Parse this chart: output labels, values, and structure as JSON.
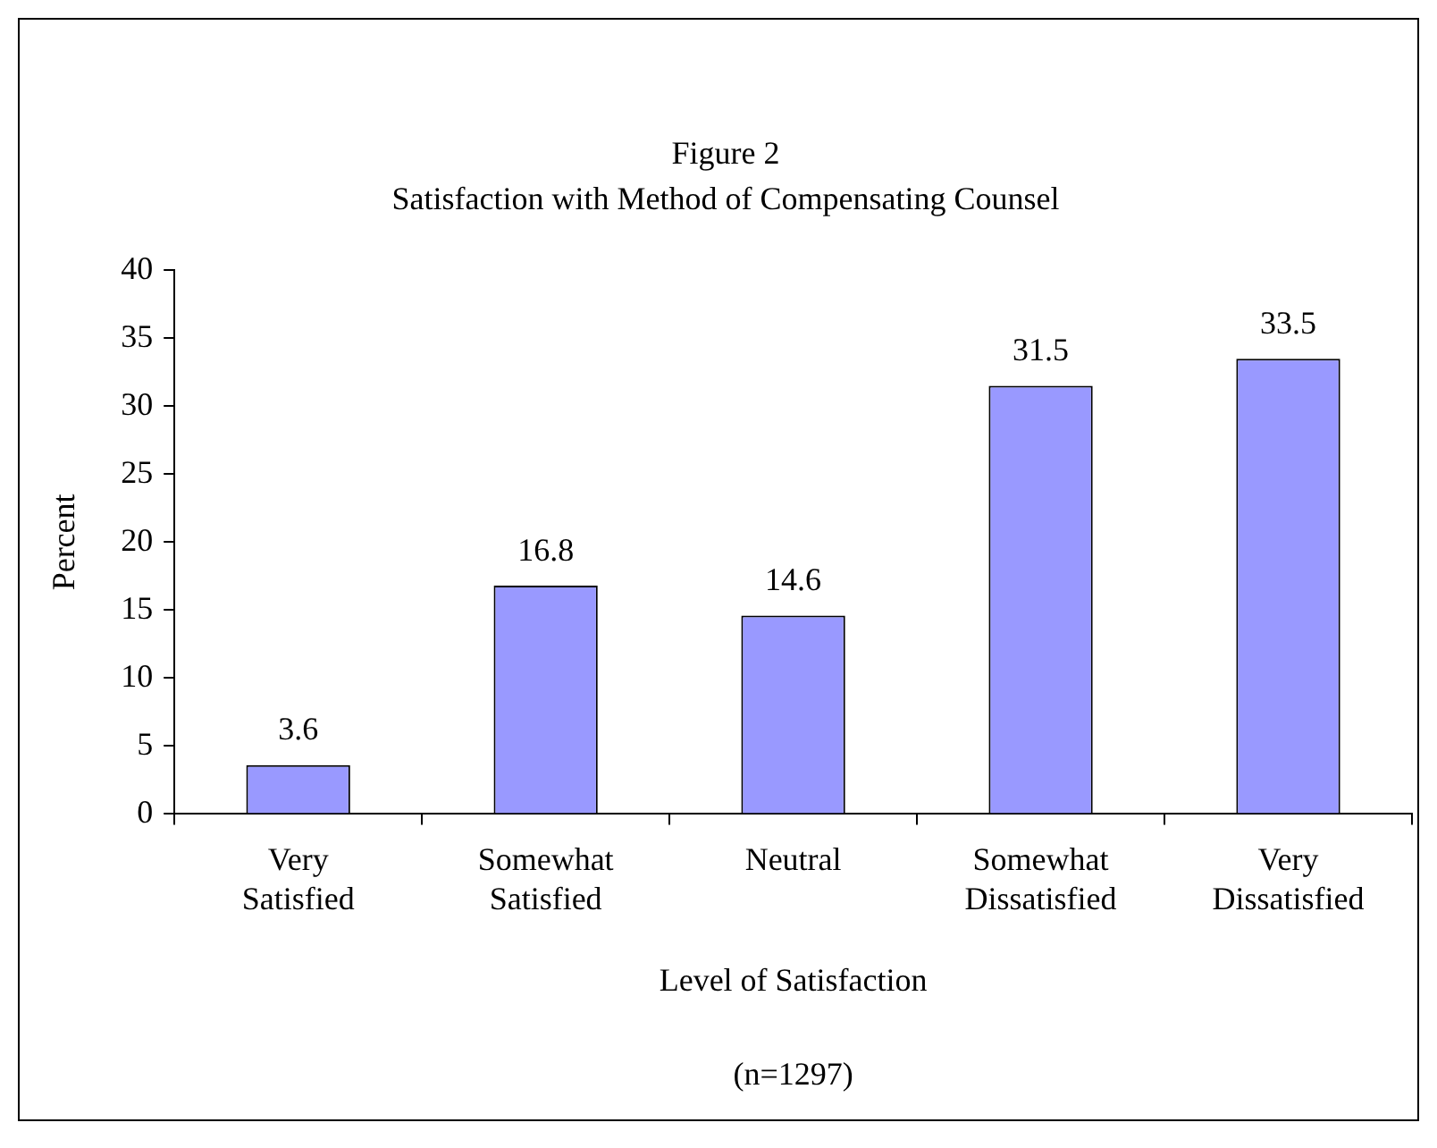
{
  "chart_data": {
    "type": "bar",
    "title": "Figure 2",
    "subtitle": "Satisfaction with Method of Compensating Counsel",
    "xlabel": "Level of Satisfaction",
    "ylabel": "Percent",
    "annotations": [
      "(n=1297)"
    ],
    "categories": [
      "Very Satisfied",
      "Somewhat Satisfied",
      "Neutral",
      "Somewhat Dissatisfied",
      "Very Dissatisfied"
    ],
    "values": [
      3.6,
      16.8,
      14.6,
      31.5,
      33.5
    ],
    "color": "#9999ff",
    "ylim": [
      0,
      40
    ],
    "yticks": [
      0,
      5,
      10,
      15,
      20,
      25,
      30,
      35,
      40
    ],
    "grid": false,
    "legend": false,
    "data_labels": true
  }
}
